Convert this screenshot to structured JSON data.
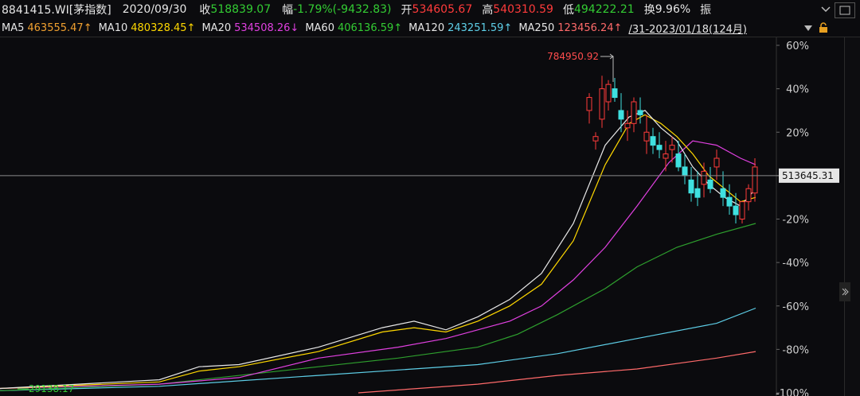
{
  "header": {
    "code": "8841415.WI[茅指数]",
    "date": "2020/09/30",
    "close_label": "收",
    "close_value": "518839.07",
    "chg_label": "幅",
    "chg_value": "-1.79%(-9432.83)",
    "open_label": "开",
    "open_value": "534605.67",
    "high_label": "高",
    "high_value": "540310.59",
    "low_label": "低",
    "low_value": "494222.21",
    "turnover_label": "换",
    "turnover_value": "9.96%",
    "amp_label": "振"
  },
  "ma_bar": {
    "ma5_label": "MA5",
    "ma5_value": "463555.47↑",
    "ma10_label": "MA10",
    "ma10_value": "480328.45↑",
    "ma20_label": "MA20",
    "ma20_value": "534508.26↓",
    "ma60_label": "MA60",
    "ma60_value": "406136.59↑",
    "ma120_label": "MA120",
    "ma120_value": "243251.59↑",
    "ma250_label": "MA250",
    "ma250_value": "123456.24↑",
    "range_text": "/31-2023/01/18(124月)"
  },
  "icons": {
    "dropdown": "chevron-down-icon",
    "lock": "lock-icon",
    "window_min": "minimize-icon",
    "fullscreen": "expand-icon",
    "side_toggle": "chevron-right-icon"
  },
  "chart_data": {
    "type": "candlestick",
    "ylabel_type": "percent",
    "y_ticks": [
      "60%",
      "40%",
      "20%",
      "0%",
      "-20%",
      "-40%",
      "-60%",
      "-80%",
      "-100%"
    ],
    "y_tick_values": [
      60,
      40,
      20,
      0,
      -20,
      -40,
      -60,
      -80,
      -100
    ],
    "ylim": [
      -100,
      60
    ],
    "crosshair_value": "513645.31",
    "crosshair_pct": 0,
    "annotation_high": "784950.92",
    "annotation_low": "29138.17",
    "ma_colors": {
      "ma5": "#e8e8e8",
      "ma10": "#ffd800",
      "ma20": "#e040e0",
      "ma60": "#2ea02e",
      "ma120": "#5ecfe8",
      "ma250": "#ff6a6a"
    },
    "series_pct": {
      "ma120": [
        [
          0,
          -99
        ],
        [
          200,
          -97
        ],
        [
          400,
          -92
        ],
        [
          600,
          -87
        ],
        [
          700,
          -82
        ],
        [
          800,
          -75
        ],
        [
          900,
          -68
        ],
        [
          949,
          -61
        ]
      ],
      "ma60": [
        [
          0,
          -99
        ],
        [
          200,
          -96
        ],
        [
          400,
          -88
        ],
        [
          500,
          -84
        ],
        [
          600,
          -79
        ],
        [
          650,
          -73
        ],
        [
          700,
          -64
        ],
        [
          760,
          -52
        ],
        [
          800,
          -42
        ],
        [
          850,
          -33
        ],
        [
          900,
          -27
        ],
        [
          949,
          -22
        ]
      ],
      "ma250": [
        [
          450,
          -100
        ],
        [
          600,
          -96
        ],
        [
          700,
          -92
        ],
        [
          800,
          -89
        ],
        [
          900,
          -84
        ],
        [
          949,
          -81
        ]
      ],
      "ma20": [
        [
          0,
          -98
        ],
        [
          200,
          -96
        ],
        [
          300,
          -93
        ],
        [
          400,
          -84
        ],
        [
          500,
          -79
        ],
        [
          560,
          -75
        ],
        [
          600,
          -71
        ],
        [
          640,
          -67
        ],
        [
          680,
          -60
        ],
        [
          720,
          -48
        ],
        [
          760,
          -33
        ],
        [
          800,
          -14
        ],
        [
          840,
          6
        ],
        [
          870,
          16
        ],
        [
          900,
          14
        ],
        [
          930,
          8
        ],
        [
          949,
          5
        ]
      ],
      "ma10": [
        [
          0,
          -98
        ],
        [
          200,
          -95
        ],
        [
          250,
          -90
        ],
        [
          300,
          -88
        ],
        [
          400,
          -81
        ],
        [
          480,
          -72
        ],
        [
          520,
          -70
        ],
        [
          560,
          -72
        ],
        [
          600,
          -67
        ],
        [
          640,
          -60
        ],
        [
          680,
          -50
        ],
        [
          720,
          -30
        ],
        [
          760,
          5
        ],
        [
          790,
          24
        ],
        [
          810,
          28
        ],
        [
          830,
          24
        ],
        [
          850,
          18
        ],
        [
          870,
          10
        ],
        [
          890,
          0
        ],
        [
          910,
          -6
        ],
        [
          930,
          -12
        ],
        [
          949,
          -10
        ]
      ],
      "ma5": [
        [
          0,
          -98
        ],
        [
          200,
          -94
        ],
        [
          250,
          -88
        ],
        [
          300,
          -87
        ],
        [
          400,
          -79
        ],
        [
          480,
          -70
        ],
        [
          520,
          -67
        ],
        [
          560,
          -71
        ],
        [
          600,
          -65
        ],
        [
          640,
          -57
        ],
        [
          680,
          -45
        ],
        [
          720,
          -22
        ],
        [
          760,
          14
        ],
        [
          790,
          27
        ],
        [
          810,
          30
        ],
        [
          830,
          22
        ],
        [
          850,
          16
        ],
        [
          870,
          4
        ],
        [
          890,
          -4
        ],
        [
          910,
          -10
        ],
        [
          930,
          -14
        ],
        [
          949,
          -6
        ]
      ]
    },
    "candles_pct": [
      [
        740,
        30,
        38,
        24,
        36
      ],
      [
        748,
        16,
        20,
        12,
        18
      ],
      [
        756,
        26,
        46,
        22,
        40
      ],
      [
        764,
        34,
        44,
        30,
        42
      ],
      [
        772,
        40,
        45,
        34,
        36
      ],
      [
        780,
        30,
        38,
        20,
        26
      ],
      [
        788,
        22,
        30,
        16,
        24
      ],
      [
        796,
        24,
        36,
        20,
        34
      ],
      [
        804,
        30,
        36,
        24,
        28
      ],
      [
        812,
        16,
        28,
        10,
        20
      ],
      [
        820,
        18,
        22,
        10,
        14
      ],
      [
        828,
        14,
        20,
        8,
        12
      ],
      [
        836,
        8,
        16,
        2,
        10
      ],
      [
        844,
        12,
        18,
        6,
        14
      ],
      [
        852,
        10,
        16,
        2,
        4
      ],
      [
        860,
        4,
        10,
        -4,
        0
      ],
      [
        868,
        -2,
        4,
        -12,
        -8
      ],
      [
        876,
        -6,
        2,
        -14,
        -10
      ],
      [
        884,
        -4,
        6,
        -10,
        2
      ],
      [
        892,
        -2,
        4,
        -8,
        -6
      ],
      [
        900,
        4,
        12,
        -2,
        8
      ],
      [
        908,
        -6,
        2,
        -14,
        -10
      ],
      [
        916,
        -10,
        -4,
        -18,
        -14
      ],
      [
        924,
        -14,
        -8,
        -22,
        -18
      ],
      [
        932,
        -20,
        -12,
        -22,
        -12
      ],
      [
        940,
        -12,
        -4,
        -16,
        -6
      ],
      [
        948,
        -8,
        8,
        -12,
        4
      ]
    ]
  }
}
